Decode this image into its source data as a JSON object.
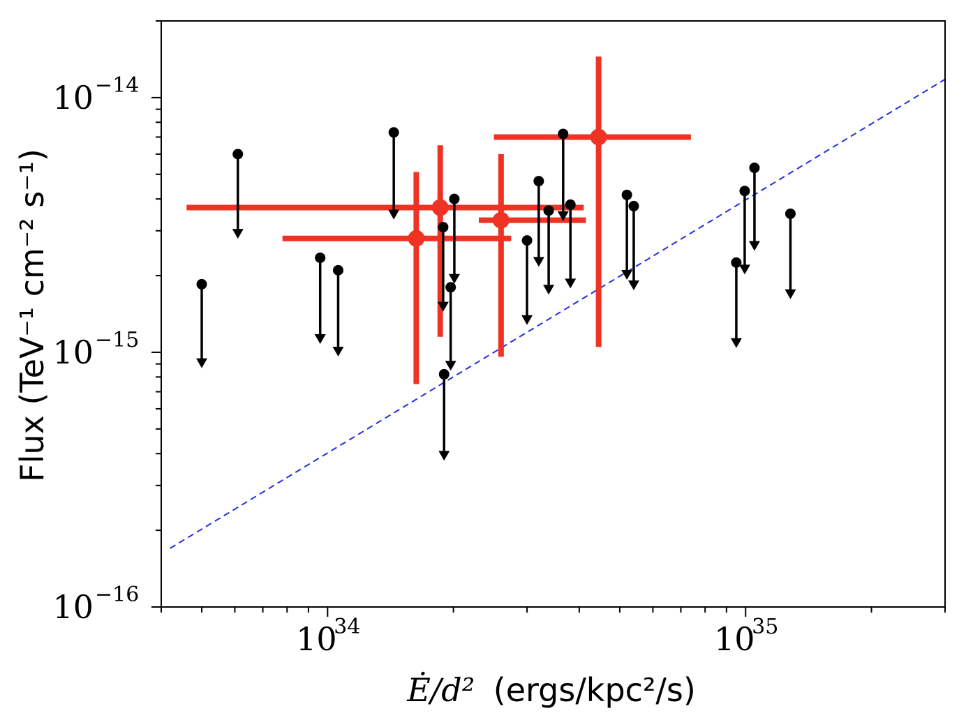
{
  "chart_data": {
    "type": "scatter",
    "xscale": "log",
    "yscale": "log",
    "xlim": [
      4e+33,
      3e+35
    ],
    "ylim": [
      1e-16,
      2e-14
    ],
    "grid": false,
    "ylabel": "Flux (TeV⁻¹ cm⁻² s⁻¹)",
    "xlabel": {
      "math": "Ė/d²",
      "units": "(ergs/kpc²/s)"
    },
    "xticks": [
      {
        "value": 1e+34,
        "base": "10",
        "exp": "34"
      },
      {
        "value": 1e+35,
        "base": "10",
        "exp": "35"
      }
    ],
    "yticks": [
      {
        "value": 1e-16,
        "base": "10",
        "exp": "−16"
      },
      {
        "value": 1e-15,
        "base": "10",
        "exp": "−15"
      },
      {
        "value": 1e-14,
        "base": "10",
        "exp": "−14"
      }
    ],
    "upper_limits": {
      "color": "#000000",
      "points": [
        {
          "x": 5e+33,
          "y": 1.85e-15,
          "lower": 9e-16
        },
        {
          "x": 6.1e+33,
          "y": 6e-15,
          "lower": 2.9e-15
        },
        {
          "x": 9.6e+33,
          "y": 2.35e-15,
          "lower": 1.12e-15
        },
        {
          "x": 1.06e+34,
          "y": 2.1e-15,
          "lower": 1e-15
        },
        {
          "x": 1.44e+34,
          "y": 7.3e-15,
          "lower": 3.45e-15
        },
        {
          "x": 1.89e+34,
          "y": 3.1e-15,
          "lower": 1.5e-15
        },
        {
          "x": 1.9e+34,
          "y": 8.2e-16,
          "lower": 3.9e-16
        },
        {
          "x": 1.97e+34,
          "y": 1.8e-15,
          "lower": 8.8e-16
        },
        {
          "x": 2.01e+34,
          "y": 4e-15,
          "lower": 1.93e-15
        },
        {
          "x": 3e+34,
          "y": 2.75e-15,
          "lower": 1.33e-15
        },
        {
          "x": 3.2e+34,
          "y": 4.7e-15,
          "lower": 2.25e-15
        },
        {
          "x": 3.38e+34,
          "y": 3.6e-15,
          "lower": 1.75e-15
        },
        {
          "x": 3.66e+34,
          "y": 7.2e-15,
          "lower": 3.4e-15
        },
        {
          "x": 3.81e+34,
          "y": 3.8e-15,
          "lower": 1.85e-15
        },
        {
          "x": 5.2e+34,
          "y": 4.15e-15,
          "lower": 2e-15
        },
        {
          "x": 5.4e+34,
          "y": 3.75e-15,
          "lower": 1.82e-15
        },
        {
          "x": 9.5e+34,
          "y": 2.25e-15,
          "lower": 1.08e-15
        },
        {
          "x": 9.95e+34,
          "y": 4.3e-15,
          "lower": 2.1e-15
        },
        {
          "x": 1.05e+35,
          "y": 5.3e-15,
          "lower": 2.6e-15
        },
        {
          "x": 1.28e+35,
          "y": 3.5e-15,
          "lower": 1.68e-15
        }
      ]
    },
    "detections": {
      "color": "#ee3324",
      "points": [
        {
          "x": 1.86e+34,
          "y": 3.7e-15,
          "xmin": 4.6e+33,
          "xmax": 4.1e+34,
          "ymin": 1.15e-15,
          "ymax": 6.5e-15
        },
        {
          "x": 1.63e+34,
          "y": 2.8e-15,
          "xmin": 7.8e+33,
          "xmax": 2.75e+34,
          "ymin": 7.5e-16,
          "ymax": 5.1e-15
        },
        {
          "x": 2.6e+34,
          "y": 3.3e-15,
          "xmin": 2.3e+34,
          "xmax": 4.15e+34,
          "ymin": 9.6e-16,
          "ymax": 6e-15
        },
        {
          "x": 4.45e+34,
          "y": 7e-15,
          "xmin": 2.5e+34,
          "xmax": 7.4e+34,
          "ymin": 1.05e-15,
          "ymax": 1.45e-14
        }
      ]
    },
    "fit_line": {
      "color": "#1f2fe0",
      "style": "dashed",
      "points": [
        [
          4.2e+33,
          1.7e-16
        ],
        [
          3e+35,
          1.18e-14
        ]
      ]
    }
  }
}
